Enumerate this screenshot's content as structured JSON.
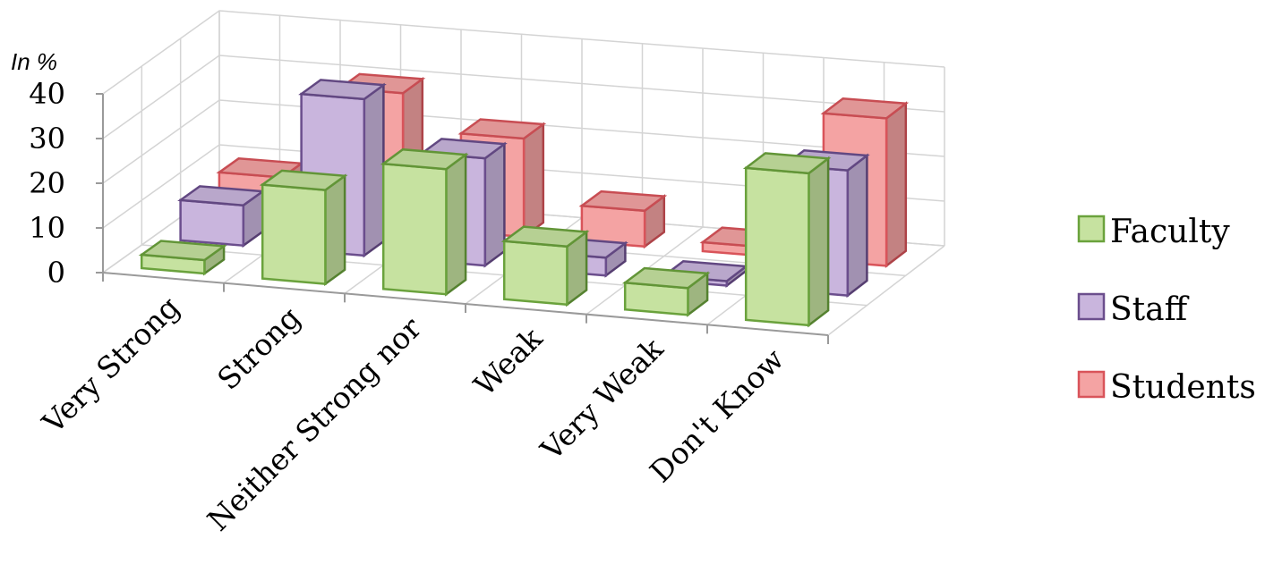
{
  "chart_data": {
    "type": "bar",
    "variant": "3d-clustered-column",
    "unit_label": "In %",
    "categories": [
      "Very Strong",
      "Strong",
      "Neither Strong nor",
      "Weak",
      "Very Weak",
      "Don't Know"
    ],
    "series": [
      {
        "name": "Faculty",
        "values": [
          3,
          21,
          28,
          13,
          6,
          34
        ],
        "color": "#c6e2a0",
        "edge": "#6aa23c"
      },
      {
        "name": "Staff",
        "values": [
          9,
          35,
          24,
          4,
          1,
          28
        ],
        "color": "#c9b5dd",
        "edge": "#6b4e8d"
      },
      {
        "name": "Students",
        "values": [
          9,
          30,
          22,
          8,
          2,
          33
        ],
        "color": "#f4a3a3",
        "edge": "#d9545a"
      }
    ],
    "yticks": [
      "0",
      "10",
      "20",
      "30",
      "40"
    ],
    "ylim": [
      0,
      40
    ],
    "grid": true,
    "legend_position": "right"
  }
}
